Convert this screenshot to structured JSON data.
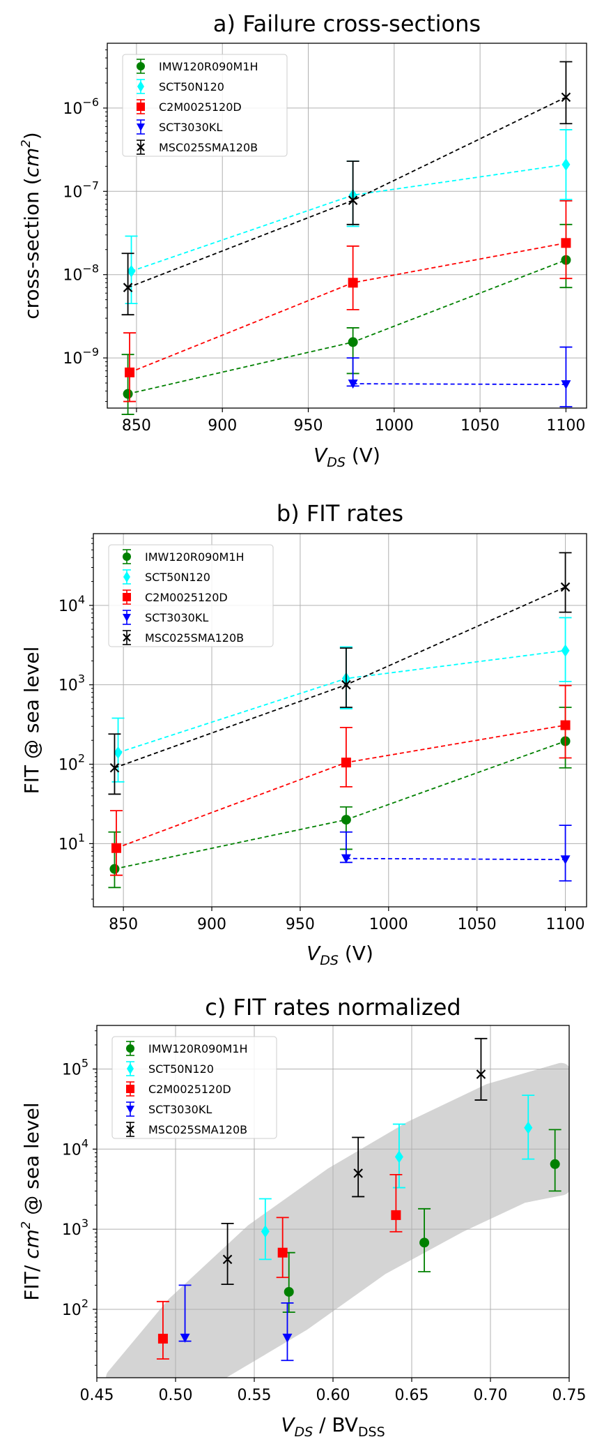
{
  "chart_data": [
    {
      "type": "scatter",
      "title": "a) Failure cross-sections",
      "xlabel": {
        "main": "V",
        "sub": "DS",
        "unit": " (V)"
      },
      "ylabel": {
        "pre": "cross-section (",
        "var": "cm",
        "sup": "2",
        "post": ")"
      },
      "x_scale": "linear",
      "y_scale": "log",
      "xlim": [
        833,
        1112
      ],
      "ylim": [
        2.5e-10,
        6e-06
      ],
      "xticks": [
        850,
        900,
        950,
        1000,
        1050,
        1100
      ],
      "xtick_labels": [
        "850",
        "900",
        "950",
        "1000",
        "1050",
        "1100"
      ],
      "yticks_exp": [
        -9,
        -8,
        -7,
        -6
      ],
      "grid": true,
      "legend": "top-left",
      "series": [
        {
          "name": "IMW120R090M1H",
          "color": "#008000",
          "marker": "circle",
          "line": "dashed",
          "x": [
            845,
            976,
            1100
          ],
          "y": [
            3.7e-10,
            1.55e-09,
            1.5e-08
          ],
          "err_low": [
            2.1e-10,
            6.5e-10,
            7e-09
          ],
          "err_high": [
            1.1e-09,
            2.3e-09,
            4e-08
          ]
        },
        {
          "name": "SCT50N120",
          "color": "#00ffff",
          "marker": "diamond",
          "line": "dashed",
          "x": [
            847,
            976,
            1100
          ],
          "y": [
            1.1e-08,
            9e-08,
            2.1e-07
          ],
          "err_low": [
            4.5e-09,
            3.8e-08,
            8e-08
          ],
          "err_high": [
            2.9e-08,
            2.3e-07,
            5.5e-07
          ]
        },
        {
          "name": "C2M0025120D",
          "color": "#ff0000",
          "marker": "square",
          "line": "dashed",
          "x": [
            846,
            976,
            1100
          ],
          "y": [
            6.7e-10,
            8e-09,
            2.4e-08
          ],
          "err_low": [
            3e-10,
            3.8e-09,
            9e-09
          ],
          "err_high": [
            2e-09,
            2.2e-08,
            7.7e-08
          ]
        },
        {
          "name": "SCT3030KL",
          "color": "#0000ff",
          "marker": "triangle-down",
          "line": "dashed",
          "x": [
            976,
            1100
          ],
          "y": [
            4.9e-10,
            4.8e-10
          ],
          "err_low": [
            4.6e-10,
            2.6e-10
          ],
          "err_high": [
            1e-09,
            1.35e-09
          ]
        },
        {
          "name": "MSC025SMA120B",
          "color": "#000000",
          "marker": "x",
          "line": "dashed",
          "x": [
            845,
            976,
            1100
          ],
          "y": [
            7e-09,
            7.8e-08,
            1.35e-06
          ],
          "err_low": [
            3.3e-09,
            4e-08,
            6.5e-07
          ],
          "err_high": [
            1.8e-08,
            2.3e-07,
            3.6e-06
          ]
        }
      ]
    },
    {
      "type": "scatter",
      "title": "b) FIT rates",
      "xlabel": {
        "main": "V",
        "sub": "DS",
        "unit": " (V)"
      },
      "ylabel": {
        "pre": "FIT @ sea level",
        "var": "",
        "sup": "",
        "post": ""
      },
      "x_scale": "linear",
      "y_scale": "log",
      "xlim": [
        833,
        1112
      ],
      "ylim": [
        1.6,
        80000.0
      ],
      "xticks": [
        850,
        900,
        950,
        1000,
        1050,
        1100
      ],
      "xtick_labels": [
        "850",
        "900",
        "950",
        "1000",
        "1050",
        "1100"
      ],
      "yticks_exp": [
        1,
        2,
        3,
        4
      ],
      "grid": true,
      "legend": "top-left",
      "series": [
        {
          "name": "IMW120R090M1H",
          "color": "#008000",
          "marker": "circle",
          "line": "dashed",
          "x": [
            845,
            976,
            1100
          ],
          "y": [
            4.8,
            20,
            195
          ],
          "err_low": [
            2.8,
            8.5,
            90
          ],
          "err_high": [
            14,
            29,
            520
          ]
        },
        {
          "name": "SCT50N120",
          "color": "#00ffff",
          "marker": "diamond",
          "line": "dashed",
          "x": [
            847,
            976,
            1100
          ],
          "y": [
            140,
            1200,
            2700
          ],
          "err_low": [
            60,
            500,
            1100
          ],
          "err_high": [
            380,
            3000,
            7000
          ]
        },
        {
          "name": "C2M0025120D",
          "color": "#ff0000",
          "marker": "square",
          "line": "dashed",
          "x": [
            846,
            976,
            1100
          ],
          "y": [
            8.8,
            105,
            310
          ],
          "err_low": [
            4,
            52,
            120
          ],
          "err_high": [
            26,
            290,
            980
          ]
        },
        {
          "name": "SCT3030KL",
          "color": "#0000ff",
          "marker": "triangle-down",
          "line": "dashed",
          "x": [
            976,
            1100
          ],
          "y": [
            6.5,
            6.3
          ],
          "err_low": [
            5.8,
            3.4
          ],
          "err_high": [
            14,
            17
          ]
        },
        {
          "name": "MSC025SMA120B",
          "color": "#000000",
          "marker": "x",
          "line": "dashed",
          "x": [
            845,
            976,
            1100
          ],
          "y": [
            90,
            1000,
            17000
          ],
          "err_low": [
            42,
            520,
            8200
          ],
          "err_high": [
            240,
            2900,
            46000
          ]
        }
      ]
    },
    {
      "type": "scatter",
      "title": "c) FIT rates normalized",
      "xlabel": {
        "main": "V",
        "sub": "DS",
        "unit": " / BV",
        "sub2": "DSS"
      },
      "ylabel": {
        "pre": "FIT/ ",
        "var": "cm",
        "sup": "2",
        "post": " @ sea level"
      },
      "x_scale": "linear",
      "y_scale": "log",
      "xlim": [
        0.45,
        0.75
      ],
      "ylim": [
        14,
        350000.0
      ],
      "xticks": [
        0.45,
        0.5,
        0.55,
        0.6,
        0.65,
        0.7,
        0.75
      ],
      "xtick_labels": [
        "0.45",
        "0.50",
        "0.55",
        "0.60",
        "0.65",
        "0.70",
        "0.75"
      ],
      "yticks_exp": [
        2,
        3,
        4,
        5
      ],
      "grid": true,
      "legend": "top-left",
      "band": {
        "color": "#d4d4d4",
        "upper": [
          [
            0.462,
            14
          ],
          [
            0.5,
            110
          ],
          [
            0.55,
            900
          ],
          [
            0.6,
            4500
          ],
          [
            0.65,
            17000
          ],
          [
            0.7,
            50000
          ],
          [
            0.745,
            90000
          ]
        ],
        "lower": [
          [
            0.47,
            14
          ],
          [
            0.52,
            14
          ],
          [
            0.58,
            70
          ],
          [
            0.63,
            350
          ],
          [
            0.68,
            1200
          ],
          [
            0.72,
            2800
          ],
          [
            0.745,
            3500
          ]
        ]
      },
      "series": [
        {
          "name": "IMW120R090M1H",
          "color": "#008000",
          "marker": "circle",
          "line": "none",
          "x": [
            0.572,
            0.658,
            0.741
          ],
          "y": [
            165,
            680,
            6500
          ],
          "err_low": [
            92,
            295,
            3000
          ],
          "err_high": [
            510,
            1800,
            17500
          ]
        },
        {
          "name": "SCT50N120",
          "color": "#00ffff",
          "marker": "diamond",
          "line": "none",
          "x": [
            0.557,
            0.642,
            0.724
          ],
          "y": [
            940,
            8000,
            18500
          ],
          "err_low": [
            420,
            3300,
            7500
          ],
          "err_high": [
            2400,
            20500,
            47000
          ]
        },
        {
          "name": "C2M0025120D",
          "color": "#ff0000",
          "marker": "square",
          "line": "none",
          "x": [
            0.492,
            0.568,
            0.64
          ],
          "y": [
            43,
            510,
            1500
          ],
          "err_low": [
            24,
            250,
            930
          ],
          "err_high": [
            125,
            1400,
            4800
          ]
        },
        {
          "name": "SCT3030KL",
          "color": "#0000ff",
          "marker": "triangle-down",
          "line": "none",
          "x": [
            0.506,
            0.571
          ],
          "y": [
            44,
            44
          ],
          "err_low": [
            40,
            23
          ],
          "err_high": [
            200,
            120
          ]
        },
        {
          "name": "MSC025SMA120B",
          "color": "#000000",
          "marker": "x",
          "line": "none",
          "x": [
            0.533,
            0.616,
            0.694
          ],
          "y": [
            420,
            5000,
            86000
          ],
          "err_low": [
            205,
            2550,
            41000
          ],
          "err_high": [
            1180,
            14000,
            240000
          ]
        }
      ]
    }
  ]
}
